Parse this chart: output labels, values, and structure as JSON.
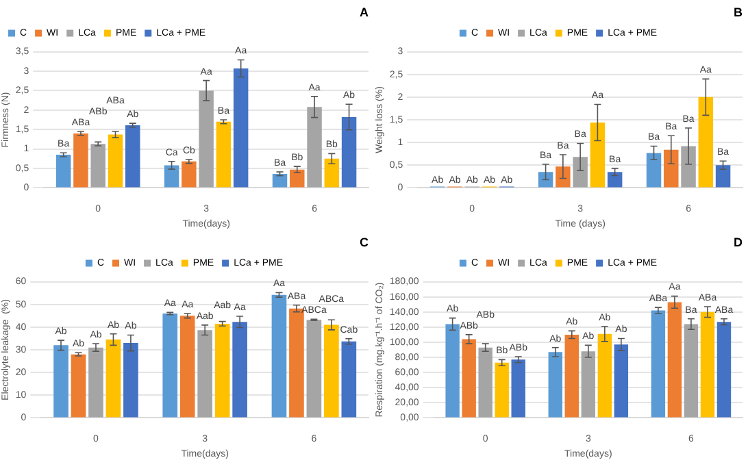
{
  "chart_data": [
    {
      "type": "bar",
      "title": "A",
      "xlabel": "Time(days)",
      "ylabel": "Firmness (N)",
      "categories": [
        "0",
        "3",
        "6"
      ],
      "legend": "top left",
      "grid": "y",
      "ylim": [
        0,
        3.5
      ],
      "yticks": [
        0,
        {
          "value": 0.5,
          "label": "0,5"
        },
        1,
        {
          "value": 1.5,
          "label": "1,5"
        },
        2,
        {
          "value": 2.5,
          "label": "2,5"
        },
        3,
        {
          "value": 3.5,
          "label": "3,5"
        }
      ],
      "series": [
        {
          "name": "C",
          "color": "#5b9bd5",
          "values": [
            0.85,
            0.58,
            0.36
          ],
          "errors": [
            0.05,
            0.1,
            0.05
          ],
          "value_labels": [
            "Ba",
            "Ca",
            "Ba"
          ]
        },
        {
          "name": "WI",
          "color": "#ed7d31",
          "values": [
            1.4,
            0.68,
            0.47
          ],
          "errors": [
            0.05,
            0.05,
            0.08
          ],
          "value_labels": [
            "ABa",
            "Cb",
            "Bb"
          ]
        },
        {
          "name": "LCa",
          "color": "#a5a5a5",
          "values": [
            1.13,
            2.5,
            2.08
          ],
          "errors": [
            0.05,
            0.26,
            0.27
          ],
          "value_labels": [
            "ABb",
            "Aa",
            "Aa"
          ]
        },
        {
          "name": "PME",
          "color": "#ffc000",
          "values": [
            1.37,
            1.7,
            0.75
          ],
          "errors": [
            0.08,
            0.05,
            0.13
          ],
          "value_labels": [
            "ABa",
            "Ba",
            "Bb"
          ]
        },
        {
          "name": "LCa + PME",
          "color": "#4472c4",
          "values": [
            1.61,
            3.07,
            1.82
          ],
          "errors": [
            0.05,
            0.22,
            0.33
          ],
          "value_labels": [
            "Ab",
            "Aa",
            "Ab"
          ]
        }
      ]
    },
    {
      "type": "bar",
      "title": "B",
      "xlabel": "Time (days)",
      "ylabel": "Weight loss (%)",
      "categories": [
        "0",
        "3",
        "6"
      ],
      "legend": "top",
      "grid": "y",
      "ylim": [
        0,
        3
      ],
      "yticks": [
        0,
        {
          "value": 0.5,
          "label": "0,5"
        },
        1,
        {
          "value": 1.5,
          "label": "1,5"
        },
        2,
        {
          "value": 2.5,
          "label": "2,5"
        },
        3
      ],
      "series": [
        {
          "name": "C",
          "color": "#5b9bd5",
          "values": [
            0,
            0.35,
            0.77
          ],
          "errors": [
            null,
            0.17,
            0.15
          ],
          "value_labels": [
            "Ab",
            "Ba",
            "Ba"
          ]
        },
        {
          "name": "WI",
          "color": "#ed7d31",
          "values": [
            0,
            0.47,
            0.84
          ],
          "errors": [
            null,
            0.26,
            0.31
          ],
          "value_labels": [
            "Ab",
            "Ba",
            "Ba"
          ]
        },
        {
          "name": "LCa",
          "color": "#a5a5a5",
          "values": [
            0,
            0.68,
            0.92
          ],
          "errors": [
            null,
            0.3,
            0.4
          ],
          "value_labels": [
            "Ab",
            "Ba",
            "Ba"
          ]
        },
        {
          "name": "PME",
          "color": "#ffc000",
          "values": [
            0,
            1.44,
            2.0
          ],
          "errors": [
            null,
            0.4,
            0.4
          ],
          "value_labels": [
            "Ab",
            "Aa",
            "Aa"
          ]
        },
        {
          "name": "LCa + PME",
          "color": "#4472c4",
          "values": [
            0,
            0.35,
            0.5
          ],
          "errors": [
            null,
            0.08,
            0.09
          ],
          "value_labels": [
            "Ab",
            "Ba",
            "Ba"
          ]
        }
      ]
    },
    {
      "type": "bar",
      "title": "C",
      "xlabel": "Time(days)",
      "ylabel": "Electrolyte leakage  (%)",
      "categories": [
        "0",
        "3",
        "6"
      ],
      "legend": "top",
      "grid": "y",
      "ylim": [
        0,
        60
      ],
      "yticks": [
        0,
        10,
        20,
        30,
        40,
        50,
        60
      ],
      "series": [
        {
          "name": "C",
          "color": "#5b9bd5",
          "values": [
            32,
            46,
            54.2
          ],
          "errors": [
            2.2,
            0.5,
            1
          ],
          "value_labels": [
            "Ab",
            "Aa",
            "Aa"
          ]
        },
        {
          "name": "WI",
          "color": "#ed7d31",
          "values": [
            28,
            45,
            48.2
          ],
          "errors": [
            0.7,
            1,
            1.5
          ],
          "value_labels": [
            "Ab",
            "Aa",
            "ABa"
          ]
        },
        {
          "name": "LCa",
          "color": "#a5a5a5",
          "values": [
            31,
            38.7,
            43.2
          ],
          "errors": [
            1.7,
            2.2,
            0.3
          ],
          "value_labels": [
            "Ab",
            "Aab",
            "ABCa"
          ]
        },
        {
          "name": "PME",
          "color": "#ffc000",
          "values": [
            34.5,
            41.5,
            41
          ],
          "errors": [
            2.5,
            1,
            2.2
          ],
          "value_labels": [
            "Ab",
            "Aab",
            "ABCa"
          ]
        },
        {
          "name": "LCa + PME",
          "color": "#4472c4",
          "values": [
            33,
            42.3,
            33.7
          ],
          "errors": [
            3.5,
            2.5,
            1.2
          ],
          "value_labels": [
            "Ab",
            "Aa",
            "Cab"
          ]
        }
      ]
    },
    {
      "type": "bar",
      "title": "D",
      "xlabel": "Time(days)",
      "ylabel": "Respiration (mg.kg⁻¹.h⁻¹ of CO₂)",
      "categories": [
        "0",
        "3",
        "6"
      ],
      "legend": "top",
      "grid": "y",
      "ylim": [
        0,
        180
      ],
      "yticks": [
        {
          "value": 0,
          "label": "0,00"
        },
        {
          "value": 20,
          "label": "20,00"
        },
        {
          "value": 40,
          "label": "40,00"
        },
        {
          "value": 60,
          "label": "60,00"
        },
        {
          "value": 80,
          "label": "80,00"
        },
        {
          "value": 100,
          "label": "100,00"
        },
        {
          "value": 120,
          "label": "120,00"
        },
        {
          "value": 140,
          "label": "140,00"
        },
        {
          "value": 160,
          "label": "160,00"
        },
        {
          "value": 180,
          "label": "180,00"
        }
      ],
      "series": [
        {
          "name": "C",
          "color": "#5b9bd5",
          "values": [
            124,
            87,
            142
          ],
          "errors": [
            8,
            6,
            4
          ],
          "value_labels": [
            "Ab",
            "Ab",
            "ABa"
          ]
        },
        {
          "name": "WI",
          "color": "#ed7d31",
          "values": [
            104,
            110,
            153
          ],
          "errors": [
            6,
            5,
            8
          ],
          "value_labels": [
            "ABb",
            "Ab",
            "Aa"
          ]
        },
        {
          "name": "LCa",
          "color": "#a5a5a5",
          "values": [
            93,
            88,
            124
          ],
          "errors": [
            5,
            8,
            7
          ],
          "value_labels": [
            "ABb",
            "Ab",
            "Ba"
          ]
        },
        {
          "name": "PME",
          "color": "#ffc000",
          "values": [
            73,
            111,
            140
          ],
          "errors": [
            4,
            10,
            7
          ],
          "value_labels": [
            "Bb",
            "Ab",
            "ABa"
          ]
        },
        {
          "name": "LCa + PME",
          "color": "#4472c4",
          "values": [
            77,
            97,
            127
          ],
          "errors": [
            4,
            8,
            4
          ],
          "value_labels": [
            "ABb",
            "Ab",
            "ABa"
          ]
        }
      ]
    }
  ]
}
